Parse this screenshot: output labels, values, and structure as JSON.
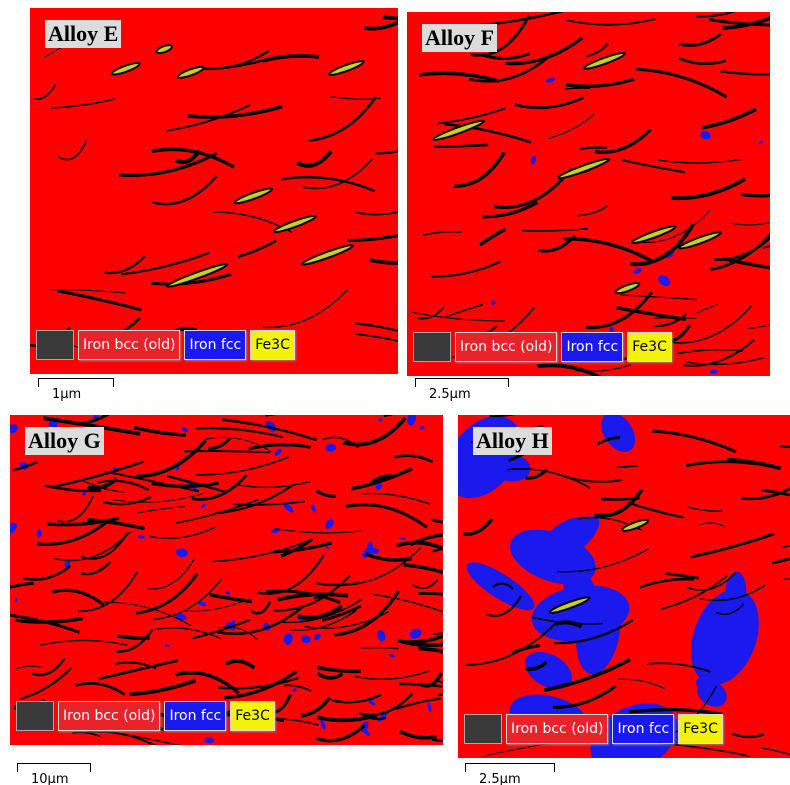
{
  "panels": [
    {
      "label": "Alloy E",
      "legend": [
        "Iron bcc (old)",
        "Iron fcc",
        "Fe3C"
      ],
      "scale_bar": "1µm"
    },
    {
      "label": "Alloy F",
      "legend": [
        "Iron bcc (old)",
        "Iron fcc",
        "Fe3C"
      ],
      "scale_bar": "2.5µm"
    },
    {
      "label": "Alloy G",
      "legend": [
        "Iron bcc (old)",
        "Iron fcc",
        "Fe3C"
      ],
      "scale_bar": "10µm"
    },
    {
      "label": "Alloy H",
      "legend": [
        "Iron bcc (old)",
        "Iron fcc",
        "Fe3C"
      ],
      "scale_bar": "2.5µm"
    }
  ]
}
